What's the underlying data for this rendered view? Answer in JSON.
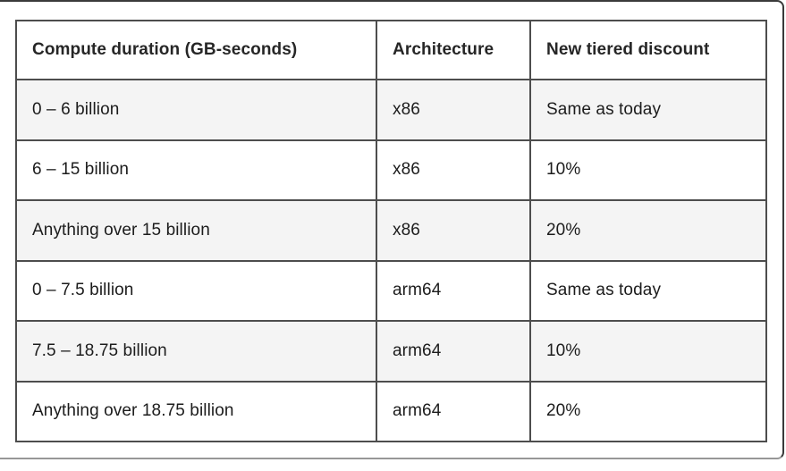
{
  "table": {
    "columns": [
      {
        "label": "Compute duration (GB-seconds)"
      },
      {
        "label": "Architecture"
      },
      {
        "label": "New tiered discount"
      }
    ],
    "rows": [
      {
        "duration": "0 – 6 billion",
        "architecture": "x86",
        "discount": "Same as today"
      },
      {
        "duration": "6 – 15 billion",
        "architecture": "x86",
        "discount": "10%"
      },
      {
        "duration": "Anything over 15 billion",
        "architecture": "x86",
        "discount": "20%"
      },
      {
        "duration": "0 – 7.5 billion",
        "architecture": "arm64",
        "discount": "Same as today"
      },
      {
        "duration": "7.5 – 18.75 billion",
        "architecture": "arm64",
        "discount": "10%"
      },
      {
        "duration": "Anything over 18.75 billion",
        "architecture": "arm64",
        "discount": "20%"
      }
    ]
  },
  "colors": {
    "table_border": "#262626",
    "inner_grid": "#4d4d4d",
    "shaded_row_bg": "#f4f4f4",
    "text": "#1c1c1c",
    "outer_frame_border": "#3a3a3a"
  }
}
